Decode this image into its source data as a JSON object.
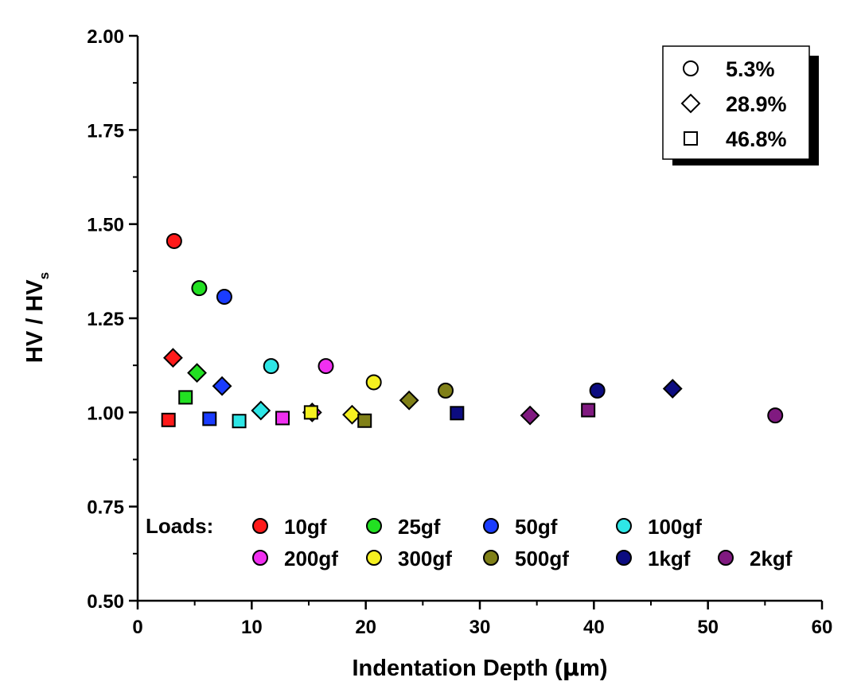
{
  "chart_data": {
    "type": "scatter",
    "xlabel_parts": [
      "Indentation Depth (",
      "μ",
      "m)"
    ],
    "ylabel_parts": [
      "HV / HV",
      "s"
    ],
    "xlim": [
      0,
      60
    ],
    "ylim": [
      0.5,
      2.0
    ],
    "x_ticks": [
      0,
      10,
      20,
      30,
      40,
      50,
      60
    ],
    "y_ticks": [
      0.5,
      0.75,
      1.0,
      1.25,
      1.5,
      1.75,
      2.0
    ],
    "x_tick_labels": [
      "0",
      "10",
      "20",
      "30",
      "40",
      "50",
      "60"
    ],
    "y_tick_labels": [
      "0.50",
      "0.75",
      "1.00",
      "1.25",
      "1.50",
      "1.75",
      "2.00"
    ],
    "grid": false,
    "shape_legend": {
      "placement": "top-right",
      "entries": [
        {
          "shape": "circle",
          "label": "5.3%"
        },
        {
          "shape": "diamond",
          "label": "28.9%"
        },
        {
          "shape": "square",
          "label": "46.8%"
        }
      ]
    },
    "color_legend": {
      "placement": "bottom",
      "title": "Loads:",
      "entries": [
        {
          "label": "10gf",
          "color": "#ff1a1a"
        },
        {
          "label": "25gf",
          "color": "#22e022"
        },
        {
          "label": "50gf",
          "color": "#1a3cff"
        },
        {
          "label": "100gf",
          "color": "#2ee6e6"
        },
        {
          "label": "200gf",
          "color": "#f030f0"
        },
        {
          "label": "300gf",
          "color": "#f5f020"
        },
        {
          "label": "500gf",
          "color": "#808018"
        },
        {
          "label": "1kgf",
          "color": "#0c0c80"
        },
        {
          "label": "2kgf",
          "color": "#801a80"
        }
      ]
    },
    "series": [
      {
        "load": "10gf",
        "shape": "circle",
        "x": 3.2,
        "y": 1.455
      },
      {
        "load": "25gf",
        "shape": "circle",
        "x": 5.4,
        "y": 1.33
      },
      {
        "load": "50gf",
        "shape": "circle",
        "x": 7.6,
        "y": 1.307
      },
      {
        "load": "100gf",
        "shape": "circle",
        "x": 11.7,
        "y": 1.123
      },
      {
        "load": "200gf",
        "shape": "circle",
        "x": 16.5,
        "y": 1.123
      },
      {
        "load": "300gf",
        "shape": "circle",
        "x": 20.7,
        "y": 1.08
      },
      {
        "load": "500gf",
        "shape": "circle",
        "x": 27.0,
        "y": 1.058
      },
      {
        "load": "1kgf",
        "shape": "circle",
        "x": 40.3,
        "y": 1.058
      },
      {
        "load": "2kgf",
        "shape": "circle",
        "x": 55.9,
        "y": 0.992
      },
      {
        "load": "10gf",
        "shape": "diamond",
        "x": 3.1,
        "y": 1.145
      },
      {
        "load": "25gf",
        "shape": "diamond",
        "x": 5.2,
        "y": 1.105
      },
      {
        "load": "50gf",
        "shape": "diamond",
        "x": 7.4,
        "y": 1.07
      },
      {
        "load": "100gf",
        "shape": "diamond",
        "x": 10.8,
        "y": 1.005
      },
      {
        "load": "200gf",
        "shape": "diamond",
        "x": 15.3,
        "y": 1.0
      },
      {
        "load": "300gf",
        "shape": "diamond",
        "x": 18.8,
        "y": 0.994
      },
      {
        "load": "500gf",
        "shape": "diamond",
        "x": 23.8,
        "y": 1.032
      },
      {
        "load": "1kgf",
        "shape": "diamond",
        "x": 46.9,
        "y": 1.063
      },
      {
        "load": "2kgf",
        "shape": "diamond",
        "x": 34.4,
        "y": 0.992
      },
      {
        "load": "10gf",
        "shape": "square",
        "x": 2.7,
        "y": 0.98
      },
      {
        "load": "25gf",
        "shape": "square",
        "x": 4.2,
        "y": 1.04
      },
      {
        "load": "50gf",
        "shape": "square",
        "x": 6.3,
        "y": 0.983
      },
      {
        "load": "100gf",
        "shape": "square",
        "x": 8.9,
        "y": 0.977
      },
      {
        "load": "200gf",
        "shape": "square",
        "x": 12.7,
        "y": 0.985
      },
      {
        "load": "300gf",
        "shape": "square",
        "x": 15.2,
        "y": 1.0
      },
      {
        "load": "500gf",
        "shape": "square",
        "x": 19.9,
        "y": 0.978
      },
      {
        "load": "1kgf",
        "shape": "square",
        "x": 28.0,
        "y": 0.998
      },
      {
        "load": "2kgf",
        "shape": "square",
        "x": 39.5,
        "y": 1.006
      }
    ]
  }
}
